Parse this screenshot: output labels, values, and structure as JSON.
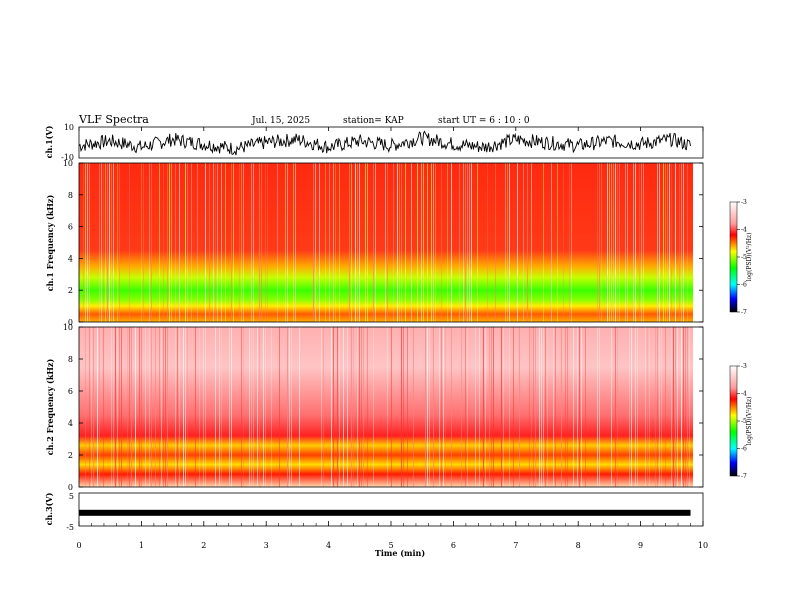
{
  "header": {
    "title": "VLF Spectra",
    "date": "Jul. 15, 2025",
    "station": "station= KAP",
    "start": "start UT =  6 : 10 : 0"
  },
  "colors": {
    "spectrogram_low": "#ff0000",
    "spectrogram_mid": "#ffff00",
    "spectrogram_green": "#33ff00",
    "trace": "#000000",
    "colorbar": [
      "#ffffff",
      "#ff0000",
      "#ffff00",
      "#00ff00",
      "#00ffff",
      "#0000ff",
      "#000000"
    ]
  },
  "chart_data": [
    {
      "type": "line",
      "name": "ch1-waveform",
      "ylabel": "ch.1(V)",
      "ylim": [
        -10,
        10
      ],
      "ytick_labels": [
        "10",
        "-10"
      ],
      "x": [
        0,
        0.5,
        1,
        1.5,
        2,
        2.5,
        3,
        3.5,
        4,
        4.5,
        5,
        5.5,
        6,
        6.5,
        7,
        7.5,
        8,
        8.5,
        9,
        9.5,
        9.8
      ],
      "y": [
        -2,
        1,
        -3,
        2,
        -1,
        -4,
        0,
        2,
        -3,
        1,
        -2,
        3,
        -1,
        -3,
        2,
        0,
        -2,
        1,
        -1,
        2,
        -2
      ],
      "note_visible": "noisy waveform filling roughly -8 to 8"
    },
    {
      "type": "heatmap",
      "name": "ch1-spectrogram",
      "ylabel": "ch.1 Frequency (kHz)",
      "ylim": [
        0,
        10
      ],
      "ytick_labels": [
        "0",
        "2",
        "4",
        "6",
        "8",
        "10"
      ],
      "xlim": [
        0,
        9.8
      ],
      "bands": [
        {
          "from_khz": 0,
          "to_khz": 0.6,
          "level": "yellow"
        },
        {
          "from_khz": 0.6,
          "to_khz": 3.5,
          "level": "green"
        },
        {
          "from_khz": 3.5,
          "to_khz": 10,
          "level": "red"
        }
      ],
      "colorbar": {
        "label": "log(PSD)(V²/Hz)",
        "ticks": [
          "-3",
          "-4",
          "-5",
          "-6",
          "-7"
        ],
        "range": [
          -7,
          -3
        ]
      }
    },
    {
      "type": "heatmap",
      "name": "ch2-spectrogram",
      "ylabel": "ch.2 Frequency (kHz)",
      "ylim": [
        0,
        10
      ],
      "ytick_labels": [
        "0",
        "2",
        "4",
        "6",
        "8",
        "10"
      ],
      "xlim": [
        0,
        9.8
      ],
      "bands": [
        {
          "from_khz": 0,
          "to_khz": 0.4,
          "level": "red"
        },
        {
          "from_khz": 0.4,
          "to_khz": 3,
          "level": "yellow"
        },
        {
          "from_khz": 3,
          "to_khz": 10,
          "level": "light-red"
        }
      ],
      "colorbar": {
        "label": "log(PSD)(V²/Hz)",
        "ticks": [
          "-3",
          "-4",
          "-5",
          "-6",
          "-7"
        ],
        "range": [
          -7,
          -3
        ]
      }
    },
    {
      "type": "line",
      "name": "ch3-waveform",
      "ylabel": "ch.3(V)",
      "ylim": [
        -5,
        5
      ],
      "ytick_labels": [
        "5",
        "-5"
      ],
      "x": [
        0,
        9.8
      ],
      "y": [
        -1,
        -1
      ]
    }
  ],
  "xaxis": {
    "label": "Time (min)",
    "ticks": [
      "0",
      "1",
      "2",
      "3",
      "4",
      "5",
      "6",
      "7",
      "8",
      "9",
      "10"
    ],
    "range": [
      0,
      10
    ]
  }
}
